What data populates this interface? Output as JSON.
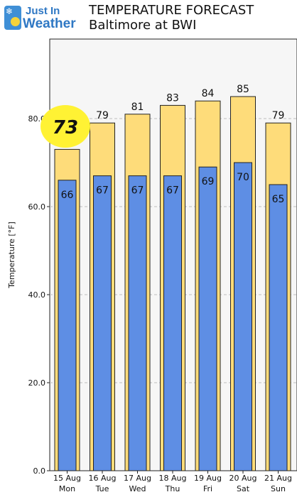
{
  "header": {
    "logo_line1": "Just In",
    "logo_line2": "Weather",
    "title": "TEMPERATURE FORECAST",
    "subtitle": "Baltimore at BWI"
  },
  "current_temp_badge": "73",
  "colors": {
    "high_bar": "#fedc7a",
    "low_bar": "#5e8ee4",
    "badge": "#fff234",
    "logo_blue": "#2f78c4"
  },
  "chart_data": {
    "type": "bar",
    "ylabel": "Temperature [°F]",
    "ylim": [
      0,
      98
    ],
    "yticks": [
      "0.0",
      "20.0",
      "40.0",
      "60.0",
      "80.0"
    ],
    "grid": true,
    "categories": [
      [
        "15 Aug",
        "Mon"
      ],
      [
        "16 Aug",
        "Tue"
      ],
      [
        "17 Aug",
        "Wed"
      ],
      [
        "18 Aug",
        "Thu"
      ],
      [
        "19 Aug",
        "Fri"
      ],
      [
        "20 Aug",
        "Sat"
      ],
      [
        "21 Aug",
        "Sun"
      ]
    ],
    "series": [
      {
        "values": [
          73,
          79,
          81,
          83,
          84,
          85,
          79
        ],
        "value_labels": [
          "",
          "79",
          "81",
          "83",
          "84",
          "85",
          "79"
        ]
      },
      {
        "values": [
          66,
          67,
          67,
          67,
          69,
          70,
          65
        ],
        "value_labels": [
          "66",
          "67",
          "67",
          "67",
          "69",
          "70",
          "65"
        ]
      }
    ]
  }
}
